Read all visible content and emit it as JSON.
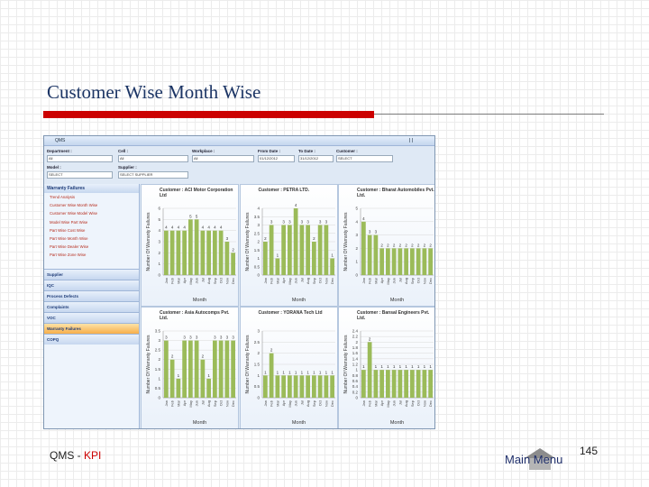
{
  "slide": {
    "title": "Customer Wise Month Wise",
    "footer_left": "QMS - ",
    "footer_kpi": "KPI",
    "main_menu": "Main Menu",
    "page_number": "145"
  },
  "app": {
    "window_title": "QMS",
    "filters": [
      {
        "label": "Department :",
        "value": "All"
      },
      {
        "label": "Cell :",
        "value": "All"
      },
      {
        "label": "Workplace :",
        "value": "All"
      },
      {
        "label": "From Date :",
        "value": "01/12/2012"
      },
      {
        "label": "To Date :",
        "value": "31/12/2012"
      },
      {
        "label": "Customer :",
        "value": "SELECT"
      },
      {
        "label": "Model :",
        "value": "SELECT"
      },
      {
        "label": "Supplier :",
        "value": "SELECT SUPPLIER"
      }
    ],
    "nav_header": "Warranty Failures",
    "nav_items": [
      "Trend Analysis",
      "Customer Wise Month Wise",
      "Customer Wise Model Wise",
      "Model Wise Part Wise",
      "Part Wise Cost Wise",
      "Part Wise Month Wise",
      "Part Wise Dealer Wise",
      "Part Wise Zone Wise"
    ],
    "sections": [
      "Supplier",
      "IQC",
      "Process Defects",
      "Complaints",
      "VOC",
      "Warranty Failures",
      "COPQ"
    ],
    "active_section": 5
  },
  "chart_data": [
    {
      "type": "bar",
      "title": "Customer : ACI Motor Corporation Ltd",
      "x_label": "Month",
      "y_label": "Number Of Warranty Failures",
      "color": "#9bbb59",
      "categories": [
        "Jan",
        "Feb",
        "Mar",
        "Apr",
        "May",
        "Jun",
        "Jul",
        "Aug",
        "Sep",
        "Oct",
        "Nov",
        "Dec"
      ],
      "values": [
        4,
        4,
        4,
        4,
        5,
        5,
        4,
        4,
        4,
        4,
        3,
        2
      ],
      "ylim": [
        0,
        6
      ],
      "yticks": [
        0,
        1,
        2,
        3,
        4,
        5,
        6
      ],
      "grid": true
    },
    {
      "type": "bar",
      "title": "Customer : PETRA LTD.",
      "x_label": "Month",
      "y_label": "Number Of Warranty Failures",
      "color": "#9bbb59",
      "categories": [
        "Jan",
        "Feb",
        "Mar",
        "Apr",
        "May",
        "Jun",
        "Jul",
        "Aug",
        "Sep",
        "Oct",
        "Nov",
        "Dec"
      ],
      "values": [
        2,
        3,
        1,
        3,
        3,
        4,
        3,
        3,
        2,
        3,
        3,
        1
      ],
      "ylim": [
        0,
        4
      ],
      "yticks": [
        0,
        0.5,
        1,
        1.5,
        2,
        2.5,
        3,
        3.5,
        4
      ],
      "grid": true
    },
    {
      "type": "bar",
      "title": "Customer : Bharat Automobiles Pvt. Ltd.",
      "x_label": "Month",
      "y_label": "Number Of Warranty Failures",
      "color": "#9bbb59",
      "categories": [
        "Jan",
        "Feb",
        "Mar",
        "Apr",
        "May",
        "Jun",
        "Jul",
        "Aug",
        "Sep",
        "Oct",
        "Nov",
        "Dec"
      ],
      "values": [
        4,
        3,
        3,
        2,
        2,
        2,
        2,
        2,
        2,
        2,
        2,
        2
      ],
      "ylim": [
        0,
        5
      ],
      "yticks": [
        0,
        1,
        2,
        3,
        4,
        5
      ],
      "grid": true
    },
    {
      "type": "bar",
      "title": "Customer : Asia Autocomps Pvt. Ltd.",
      "x_label": "Month",
      "y_label": "Number Of Warranty Failures",
      "color": "#9bbb59",
      "categories": [
        "Jan",
        "Feb",
        "Mar",
        "Apr",
        "May",
        "Jun",
        "Jul",
        "Aug",
        "Sep",
        "Oct",
        "Nov",
        "Dec"
      ],
      "values": [
        3,
        2,
        1,
        3,
        3,
        3,
        2,
        1,
        3,
        3,
        3,
        3
      ],
      "ylim": [
        0,
        3.5
      ],
      "yticks": [
        0,
        0.5,
        1,
        1.5,
        2,
        2.5,
        3,
        3.5
      ],
      "grid": true
    },
    {
      "type": "bar",
      "title": "Customer : YORANA Tech Ltd",
      "x_label": "Month",
      "y_label": "Number Of Warranty Failures",
      "color": "#9bbb59",
      "categories": [
        "Jan",
        "Feb",
        "Mar",
        "Apr",
        "May",
        "Jun",
        "Jul",
        "Aug",
        "Sep",
        "Oct",
        "Nov",
        "Dec"
      ],
      "values": [
        1,
        2,
        1,
        1,
        1,
        1,
        1,
        1,
        1,
        1,
        1,
        1
      ],
      "ylim": [
        0,
        3
      ],
      "yticks": [
        0,
        0.5,
        1,
        1.5,
        2,
        2.5,
        3
      ],
      "grid": true
    },
    {
      "type": "bar",
      "title": "Customer : Bansal Engineers Pvt. Ltd.",
      "x_label": "Month",
      "y_label": "Number Of Warranty Failures",
      "color": "#9bbb59",
      "categories": [
        "Jan",
        "Feb",
        "Mar",
        "Apr",
        "May",
        "Jun",
        "Jul",
        "Aug",
        "Sep",
        "Oct",
        "Nov",
        "Dec"
      ],
      "values": [
        1,
        2,
        1,
        1,
        1,
        1,
        1,
        1,
        1,
        1,
        1,
        1
      ],
      "ylim": [
        0,
        2.4
      ],
      "yticks": [
        0,
        0.2,
        0.4,
        0.6,
        0.8,
        1,
        1.2,
        1.4,
        1.6,
        1.8,
        2,
        2.2,
        2.4
      ],
      "grid": true
    }
  ]
}
